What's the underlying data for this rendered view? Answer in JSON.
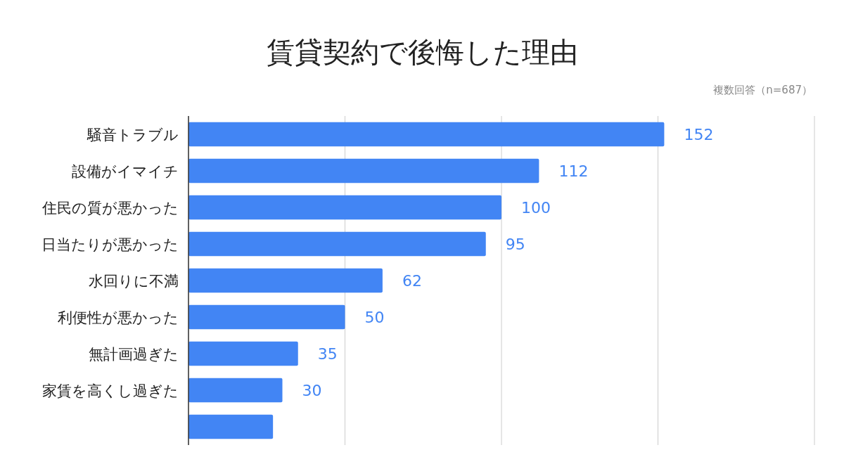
{
  "chart_data": {
    "type": "bar",
    "orientation": "horizontal",
    "title": "賃貸契約で後悔した理由",
    "subtitle": "複数回答（n=687）",
    "categories": [
      "騒音トラブル",
      "設備がイマイチ",
      "住民の質が悪かった",
      "日当たりが悪かった",
      "水回りに不満",
      "利便性が悪かった",
      "無計画過ぎた",
      "家賃を高くし過ぎた",
      null
    ],
    "values": [
      152,
      112,
      100,
      95,
      62,
      50,
      35,
      30,
      27
    ],
    "value_labels": [
      "152",
      "112",
      "100",
      "95",
      "62",
      "50",
      "35",
      "30",
      null
    ],
    "color": "#4285f4",
    "xlim": [
      0,
      200
    ],
    "xticks": [
      {
        "value": 0,
        "label": null
      },
      {
        "value": 50,
        "label": null
      },
      {
        "value": 100,
        "label": null
      },
      {
        "value": 150,
        "label": null
      },
      {
        "value": 200,
        "label": null
      }
    ],
    "grid": "x",
    "tick_labels": "y"
  }
}
